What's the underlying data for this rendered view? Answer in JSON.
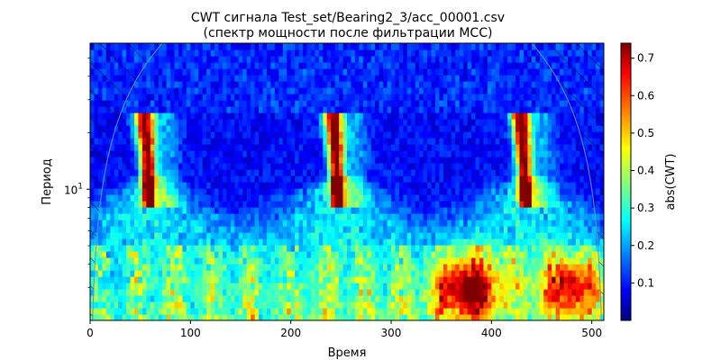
{
  "chart_data": {
    "type": "heatmap",
    "title_line1": "CWT сигнала  Test_set/Bearing2_3/acc_00001.csv",
    "title_line2": "(спектр мощности после фильтрации MCC)",
    "xlabel": "Время",
    "ylabel": "Период",
    "xlim": [
      0,
      512
    ],
    "x_ticks": [
      0,
      100,
      200,
      300,
      400,
      500
    ],
    "y_scale": "log",
    "ylim": [
      2,
      60
    ],
    "y_major_ticks": [
      {
        "value": 10,
        "base": "10",
        "exponent": "1"
      }
    ],
    "colorbar": {
      "label": "abs(CWT)",
      "range": [
        0.0,
        0.74
      ],
      "ticks": [
        0.1,
        0.2,
        0.3,
        0.4,
        0.5,
        0.6,
        0.7
      ],
      "colormap": "jet"
    },
    "grid": false,
    "cone_of_influence": {
      "shown": true,
      "hatch": "diagonal"
    },
    "features": [
      {
        "kind": "periodic-ridge",
        "x": [
          60,
          248,
          435
        ],
        "period_range": [
          8,
          25
        ],
        "peak_value": 0.74
      },
      {
        "kind": "low-period-blob",
        "x": 378,
        "period": 3,
        "value": 0.45
      },
      {
        "kind": "low-period-blob",
        "x": 480,
        "period": 3,
        "value": 0.4
      }
    ]
  }
}
